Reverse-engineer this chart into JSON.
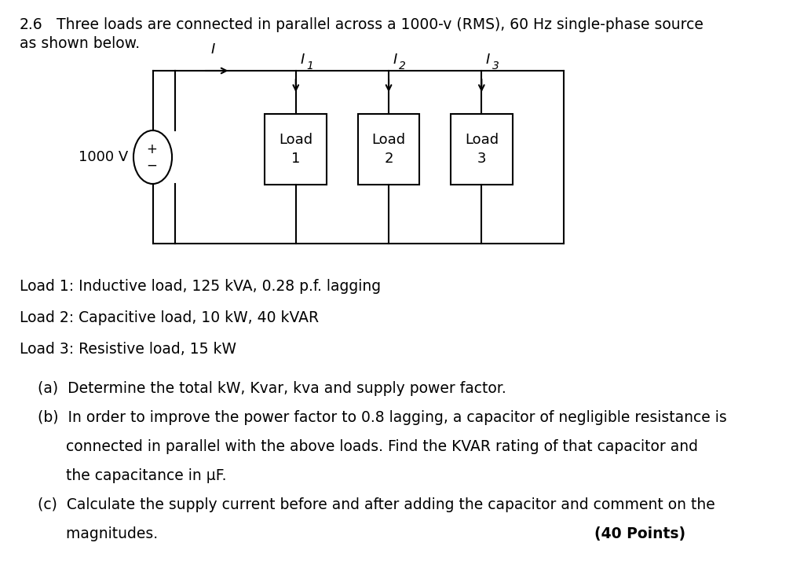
{
  "bg_color": "#ffffff",
  "title_number": "2.6",
  "title_line1": "Three loads are connected in parallel across a 1000-v (RMS), 60 Hz single-phase source",
  "title_line2": "as shown below.",
  "load1_label": "Load\n1",
  "load2_label": "Load\n2",
  "load3_label": "Load\n3",
  "source_label": "1000 V",
  "current_main": "I",
  "current1": "I",
  "current1_sub": "1",
  "current2": "I",
  "current2_sub": "2",
  "current3": "I",
  "current3_sub": "3",
  "load1_desc": "Load 1: Inductive load, 125 kVA, 0.28 p.f. lagging",
  "load2_desc": "Load 2: Capacitive load, 10 kW, 40 kVAR",
  "load3_desc": "Load 3: Resistive load, 15 kW",
  "part_a": "(a)  Determine the total kW, Kvar, kva and supply power factor.",
  "part_b_line1": "(b)  In order to improve the power factor to 0.8 lagging, a capacitor of negligible resistance is",
  "part_b_line2": "      connected in parallel with the above loads. Find the KVAR rating of that capacitor and",
  "part_b_line3": "      the capacitance in μF.",
  "part_c_line1": "(c)  Calculate the supply current before and after adding the capacitor and comment on the",
  "part_c_line2": "      magnitudes.",
  "points": "(40 Points)",
  "font_size_title": 13.5,
  "font_size_body": 13.5,
  "font_size_circuit": 13.0,
  "font_size_points": 13.5,
  "lw": 1.5
}
